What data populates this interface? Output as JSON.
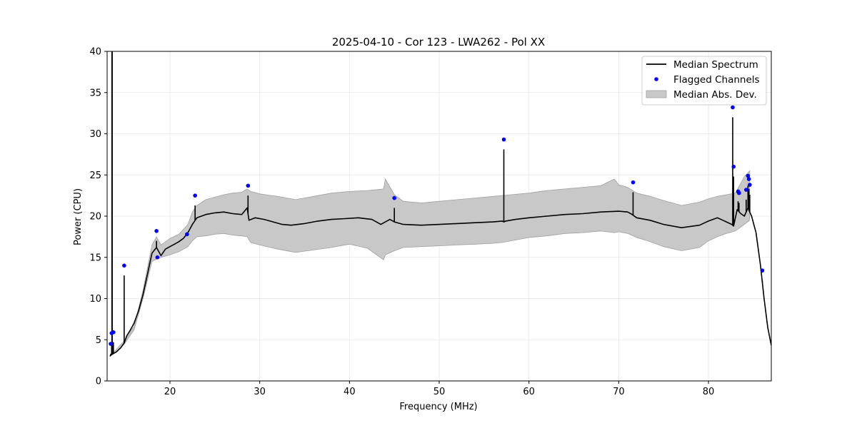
{
  "chart_data": {
    "type": "line",
    "title": "2025-04-10 - Cor 123 - LWA262 - Pol XX",
    "xlabel": "Frequency (MHz)",
    "ylabel": "Power (CPU)",
    "xlim": [
      13,
      87
    ],
    "ylim": [
      0,
      40
    ],
    "xticks": [
      20,
      30,
      40,
      50,
      60,
      70,
      80
    ],
    "yticks": [
      0,
      5,
      10,
      15,
      20,
      25,
      30,
      35,
      40
    ],
    "grid": true,
    "legend_placement": "top-right",
    "colors": {
      "median": "#000000",
      "flagged": "#0000ff",
      "mad_fill": "#c8c8c8",
      "mad_edge": "#a0a0a0"
    },
    "series": [
      {
        "name": "Median Spectrum",
        "kind": "line",
        "x": [
          13.3,
          13.5,
          14.0,
          14.5,
          14.9,
          15.2,
          15.6,
          16.0,
          16.5,
          17.0,
          17.5,
          18.0,
          18.5,
          19.0,
          19.5,
          20.0,
          20.5,
          21.0,
          21.5,
          22.0,
          22.5,
          23.0,
          23.5,
          24.0,
          25.0,
          26.0,
          27.0,
          28.0,
          28.6,
          28.8,
          29.5,
          30.5,
          31.5,
          32.5,
          33.5,
          35.0,
          36.5,
          38.0,
          39.5,
          41.0,
          42.5,
          43.5,
          44.5,
          45.0,
          46.0,
          48.0,
          50.0,
          52.0,
          54.0,
          56.0,
          57.0,
          57.2,
          57.4,
          58.5,
          60.0,
          62.0,
          64.0,
          66.0,
          68.0,
          70.0,
          71.0,
          71.5,
          72.0,
          73.5,
          75.0,
          77.0,
          79.0,
          80.0,
          81.0,
          82.0,
          82.6,
          82.8,
          83.2,
          83.6,
          84.0,
          84.4,
          84.8,
          85.3,
          85.8,
          86.2,
          86.6,
          87.0
        ],
        "y": [
          3.0,
          3.2,
          3.5,
          4.0,
          4.6,
          5.5,
          6.2,
          7.0,
          8.5,
          10.5,
          13.0,
          15.5,
          16.2,
          15.2,
          16.0,
          16.3,
          16.6,
          16.9,
          17.3,
          18.0,
          19.0,
          19.8,
          20.0,
          20.2,
          20.4,
          20.5,
          20.3,
          20.2,
          21.0,
          19.5,
          19.8,
          19.6,
          19.3,
          19.0,
          18.9,
          19.1,
          19.4,
          19.6,
          19.7,
          19.8,
          19.6,
          19.0,
          19.6,
          19.3,
          19.0,
          18.9,
          19.0,
          19.1,
          19.2,
          19.3,
          19.4,
          19.3,
          19.4,
          19.6,
          19.8,
          20.0,
          20.2,
          20.3,
          20.5,
          20.6,
          20.5,
          20.2,
          19.8,
          19.5,
          19.0,
          18.6,
          18.9,
          19.4,
          19.8,
          19.3,
          19.0,
          18.8,
          20.8,
          20.3,
          20.0,
          21.0,
          20.0,
          18.0,
          14.0,
          10.0,
          6.5,
          4.3
        ]
      },
      {
        "name": "Flagged Channels",
        "kind": "scatter",
        "x": [
          13.4,
          13.5,
          13.7,
          14.9,
          18.5,
          18.6,
          21.9,
          22.8,
          28.7,
          45.0,
          57.2,
          71.6,
          82.7,
          82.8,
          83.3,
          83.4,
          84.2,
          84.4,
          84.5,
          84.6,
          86.0
        ],
        "y": [
          4.5,
          5.8,
          5.9,
          14.0,
          18.2,
          15.0,
          17.8,
          22.5,
          23.7,
          22.2,
          29.3,
          24.1,
          33.2,
          26.0,
          23.0,
          22.8,
          23.2,
          24.9,
          24.5,
          23.8,
          13.4
        ]
      },
      {
        "name": "Median Abs. Dev.",
        "kind": "area",
        "x": [
          13.3,
          14.0,
          15.0,
          16.0,
          17.0,
          18.0,
          18.5,
          19.0,
          20.0,
          21.0,
          22.0,
          22.5,
          23.0,
          24.0,
          25.0,
          26.0,
          27.0,
          28.0,
          28.6,
          29.0,
          30.0,
          32.0,
          34.0,
          36.0,
          38.0,
          40.0,
          42.0,
          43.8,
          44.0,
          45.0,
          46.0,
          48.0,
          50.0,
          52.0,
          54.0,
          56.0,
          57.0,
          58.0,
          60.0,
          62.0,
          64.0,
          66.0,
          68.0,
          69.5,
          70.0,
          71.0,
          72.0,
          73.5,
          75.0,
          77.0,
          79.0,
          80.0,
          81.0,
          82.0,
          83.0,
          84.0,
          84.6
        ],
        "lower": [
          3.0,
          3.5,
          4.6,
          6.2,
          10.0,
          14.5,
          14.8,
          15.0,
          15.3,
          15.7,
          16.3,
          17.0,
          17.5,
          17.6,
          17.8,
          17.9,
          17.7,
          17.6,
          17.5,
          16.8,
          16.5,
          16.0,
          15.6,
          15.9,
          16.2,
          16.6,
          16.1,
          14.7,
          15.3,
          15.8,
          16.2,
          16.3,
          16.4,
          16.5,
          16.6,
          16.7,
          16.8,
          17.0,
          17.4,
          17.6,
          17.9,
          18.0,
          18.2,
          18.0,
          18.1,
          17.9,
          17.4,
          16.9,
          16.3,
          15.8,
          16.2,
          17.0,
          17.5,
          17.9,
          18.2,
          19.0,
          19.5
        ],
        "upper": [
          3.0,
          3.8,
          5.0,
          6.6,
          11.0,
          16.5,
          17.5,
          16.5,
          17.3,
          17.8,
          19.0,
          20.5,
          21.3,
          22.0,
          22.3,
          22.6,
          22.8,
          22.9,
          23.3,
          23.0,
          22.7,
          22.4,
          22.0,
          22.4,
          22.8,
          23.0,
          23.1,
          23.3,
          24.5,
          22.6,
          21.8,
          21.6,
          21.8,
          22.0,
          22.2,
          22.4,
          22.5,
          22.6,
          22.8,
          23.1,
          23.3,
          23.5,
          23.7,
          24.5,
          23.8,
          23.5,
          22.8,
          22.4,
          21.9,
          21.3,
          21.7,
          22.1,
          22.4,
          22.6,
          22.8,
          24.8,
          25.5
        ]
      }
    ]
  }
}
